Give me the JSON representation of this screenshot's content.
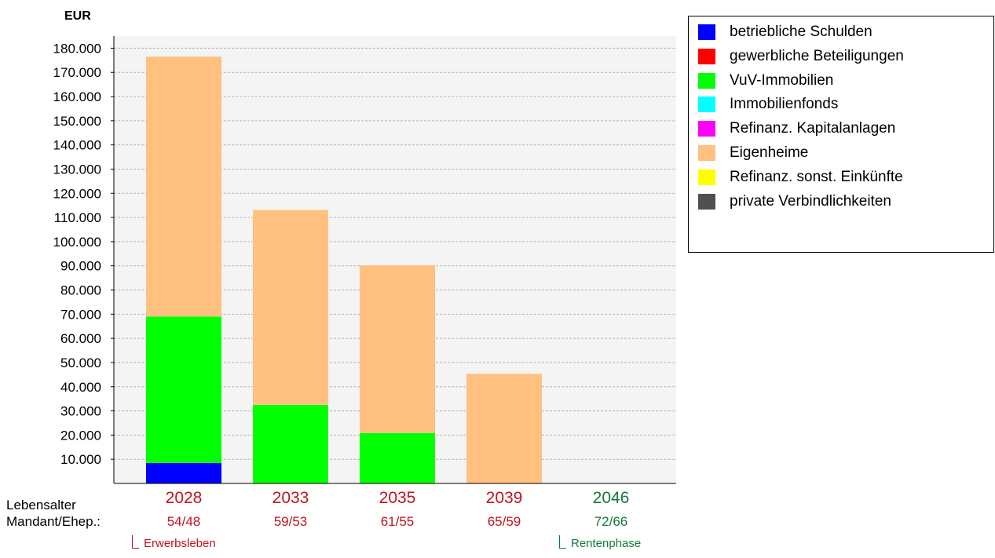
{
  "chart_data": {
    "type": "bar",
    "stacked": true,
    "unit": "EUR",
    "categories": [
      "2028",
      "2033",
      "2035",
      "2039",
      "2046"
    ],
    "ages": [
      "54/48",
      "59/53",
      "61/55",
      "65/59",
      "72/66"
    ],
    "category_colors": [
      "#c0141e",
      "#c0141e",
      "#c0141e",
      "#c0141e",
      "#137a3a"
    ],
    "row_labels": {
      "years": "Lebensalter",
      "ages": "Mandant/Ehep.:"
    },
    "phases": [
      {
        "label": "Erwerbsleben",
        "category_index": 0,
        "color": "#c0141e"
      },
      {
        "label": "Rentenphase",
        "category_index": 4,
        "color": "#137a3a"
      }
    ],
    "series": [
      {
        "name": "betriebliche Schulden",
        "color": "#0000ff",
        "values": [
          8500,
          0,
          0,
          0,
          0
        ]
      },
      {
        "name": "gewerbliche Beteiligungen",
        "color": "#ff0000",
        "values": [
          0,
          0,
          0,
          0,
          0
        ]
      },
      {
        "name": "VuV-Immobilien",
        "color": "#00ff00",
        "values": [
          60500,
          32500,
          20800,
          0,
          0
        ]
      },
      {
        "name": "Immobilienfonds",
        "color": "#00ffff",
        "values": [
          0,
          0,
          0,
          0,
          0
        ]
      },
      {
        "name": "Refinanz. Kapitalanlagen",
        "color": "#ff00ff",
        "values": [
          0,
          0,
          0,
          0,
          0
        ]
      },
      {
        "name": "Eigenheime",
        "color": "#ffc080",
        "values": [
          107500,
          80600,
          69400,
          45300,
          0
        ]
      },
      {
        "name": "Refinanz. sonst. Einkünfte",
        "color": "#ffff00",
        "values": [
          0,
          0,
          0,
          0,
          0
        ]
      },
      {
        "name": "private Verbindlichkeiten",
        "color": "#505050",
        "values": [
          0,
          0,
          0,
          0,
          0
        ]
      }
    ],
    "ylim": [
      0,
      185000
    ],
    "yticks": [
      10000,
      20000,
      30000,
      40000,
      50000,
      60000,
      70000,
      80000,
      90000,
      100000,
      110000,
      120000,
      130000,
      140000,
      150000,
      160000,
      170000,
      180000
    ],
    "ytick_labels": [
      "10.000",
      "20.000",
      "30.000",
      "40.000",
      "50.000",
      "60.000",
      "70.000",
      "80.000",
      "90.000",
      "100.000",
      "110.000",
      "120.000",
      "130.000",
      "140.000",
      "150.000",
      "160.000",
      "170.000",
      "180.000"
    ],
    "grid": true,
    "legend_position": "top-right"
  }
}
